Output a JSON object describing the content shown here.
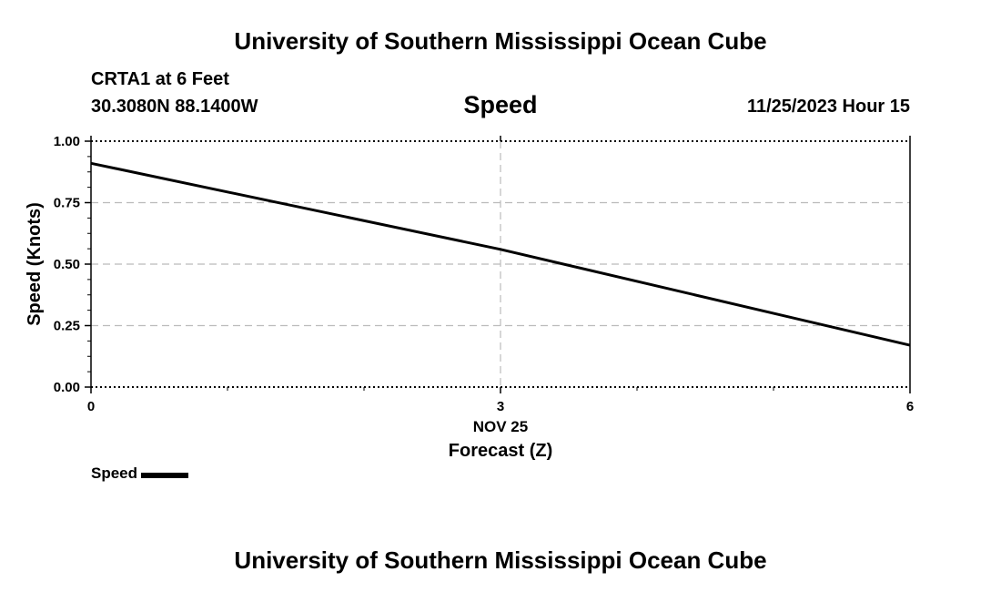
{
  "header": {
    "title": "University of Southern Mississippi Ocean Cube",
    "station": "CRTA1 at 6 Feet",
    "coords": "30.3080N  88.1400W",
    "datetime": "11/25/2023 Hour 15"
  },
  "footer": {
    "title": "University of Southern Mississippi Ocean Cube"
  },
  "legend": {
    "label": "Speed"
  },
  "chart_data": {
    "type": "line",
    "title": "Speed",
    "xlabel": "Forecast (Z)",
    "ylabel": "Speed (Knots)",
    "date_label": "NOV 25",
    "xlim": [
      0,
      6
    ],
    "ylim": [
      0,
      1
    ],
    "x_ticks": [
      0,
      3,
      6
    ],
    "x_tick_labels": [
      "0",
      "3",
      "6"
    ],
    "y_ticks": [
      0,
      0.25,
      0.5,
      0.75,
      1.0
    ],
    "y_tick_labels": [
      "0.00",
      "0.25",
      "0.50",
      "0.75",
      "1.00"
    ],
    "grid": true,
    "series": [
      {
        "name": "Speed",
        "x": [
          0,
          3,
          6
        ],
        "values": [
          0.91,
          0.56,
          0.17
        ],
        "color": "#000000"
      }
    ]
  }
}
